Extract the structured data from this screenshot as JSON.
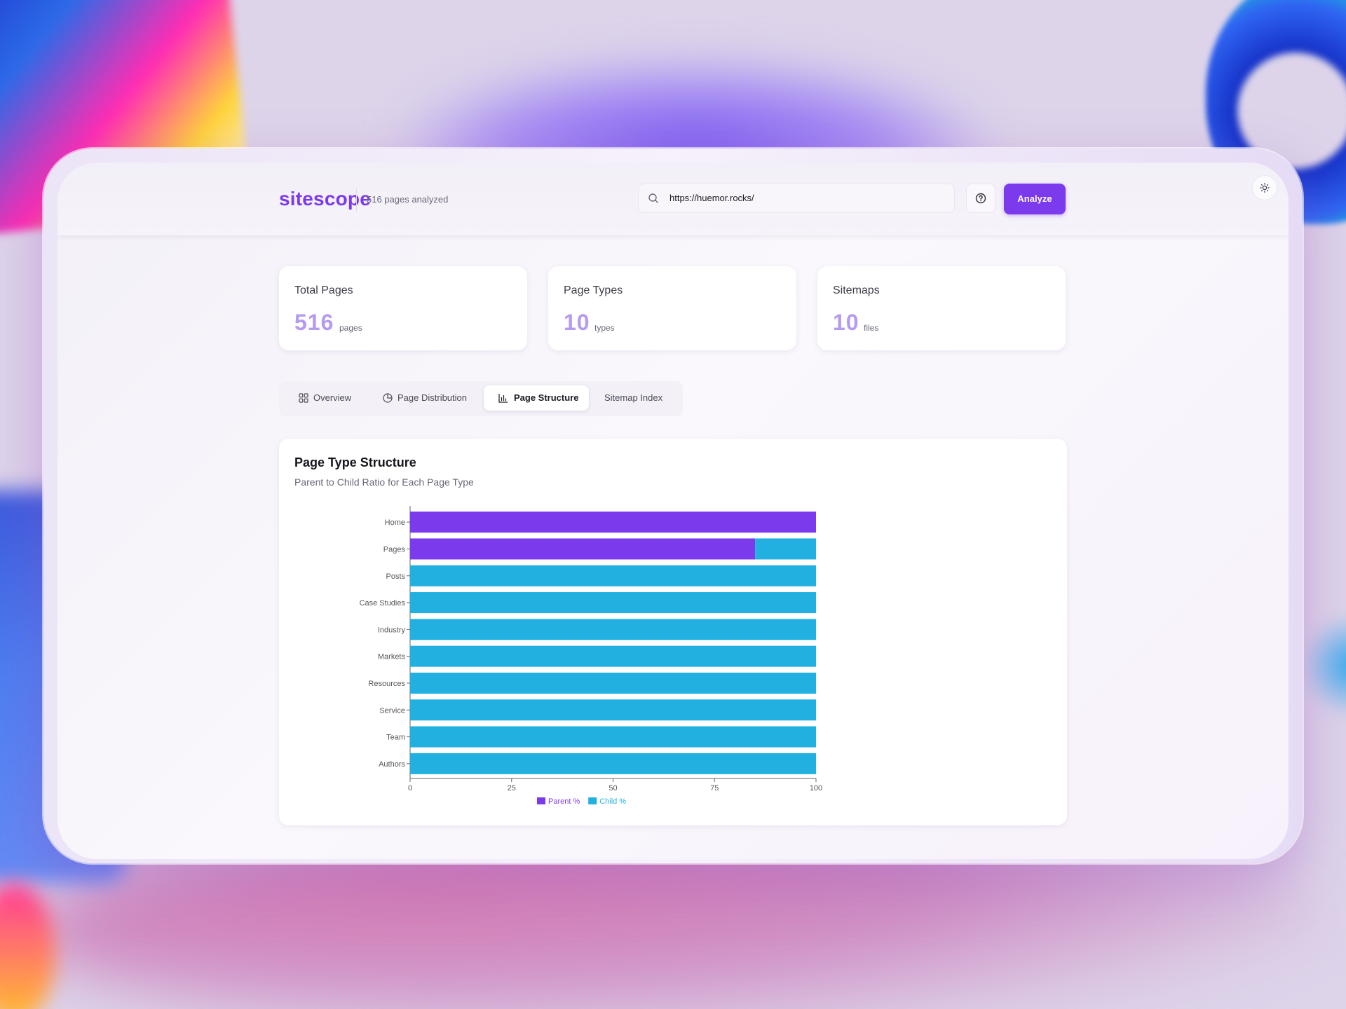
{
  "header": {
    "brand": "sitescope",
    "pages_analyzed": "516 pages analyzed",
    "search_value": "https://huemor.rocks/",
    "analyze_label": "Analyze"
  },
  "stats": [
    {
      "label": "Total Pages",
      "value": "516",
      "unit": "pages"
    },
    {
      "label": "Page Types",
      "value": "10",
      "unit": "types"
    },
    {
      "label": "Sitemaps",
      "value": "10",
      "unit": "files"
    }
  ],
  "tabs": [
    {
      "label": "Overview",
      "icon": "grid-icon",
      "active": false
    },
    {
      "label": "Page Distribution",
      "icon": "pie-chart-icon",
      "active": false
    },
    {
      "label": "Page Structure",
      "icon": "bar-chart-icon",
      "active": true
    },
    {
      "label": "Sitemap Index",
      "icon": "",
      "active": false
    }
  ],
  "card": {
    "title": "Page Type Structure",
    "subtitle": "Parent to Child Ratio for Each Page Type"
  },
  "colors": {
    "accent": "#7c3aed",
    "parent": "#7c3aed",
    "child": "#22b0e0"
  },
  "chart_data": {
    "type": "bar",
    "orientation": "horizontal",
    "stacked": true,
    "categories": [
      "Home",
      "Pages",
      "Posts",
      "Case Studies",
      "Industry",
      "Markets",
      "Resources",
      "Service",
      "Team",
      "Authors"
    ],
    "series": [
      {
        "name": "Parent %",
        "values": [
          100,
          85,
          0,
          0,
          0,
          0,
          0,
          0,
          0,
          0
        ]
      },
      {
        "name": "Child %",
        "values": [
          0,
          15,
          100,
          100,
          100,
          100,
          100,
          100,
          100,
          100
        ]
      }
    ],
    "xticks": [
      "0",
      "25",
      "50",
      "75",
      "100"
    ],
    "xlim": [
      0,
      100
    ],
    "legend": "bottom-center",
    "grid": false
  }
}
